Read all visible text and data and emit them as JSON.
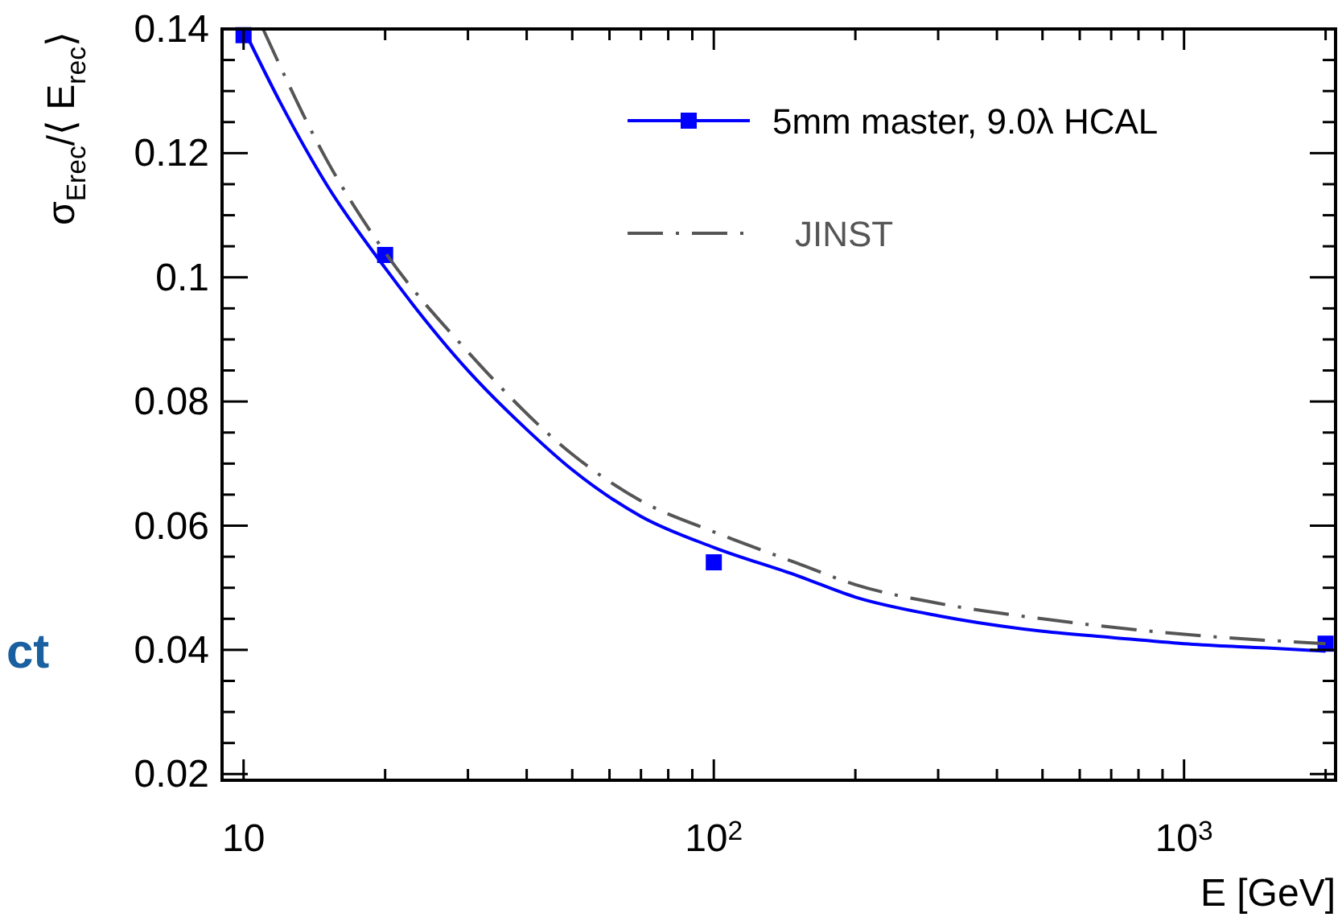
{
  "chart_data": {
    "type": "line",
    "ylabel": "σ$_{Erec}$/⟨ E$_{rec}$⟩",
    "xlabel": "E [GeV]",
    "log": "x",
    "xlim": [
      9,
      2100
    ],
    "ylim": [
      0.019,
      0.14
    ],
    "xticks": [
      {
        "value": 10,
        "label": "10"
      },
      {
        "value": 20,
        "label": null
      },
      {
        "value": 30,
        "label": null
      },
      {
        "value": 40,
        "label": null
      },
      {
        "value": 50,
        "label": null
      },
      {
        "value": 60,
        "label": null
      },
      {
        "value": 70,
        "label": null
      },
      {
        "value": 80,
        "label": null
      },
      {
        "value": 90,
        "label": null
      },
      {
        "value": 100,
        "label": "10$^{2}$"
      },
      {
        "value": 200,
        "label": null
      },
      {
        "value": 300,
        "label": null
      },
      {
        "value": 400,
        "label": null
      },
      {
        "value": 500,
        "label": null
      },
      {
        "value": 600,
        "label": null
      },
      {
        "value": 700,
        "label": null
      },
      {
        "value": 800,
        "label": null
      },
      {
        "value": 900,
        "label": null
      },
      {
        "value": 1000,
        "label": "10$^{3}$"
      },
      {
        "value": 2000,
        "label": null
      }
    ],
    "yticks": [
      {
        "value": 0.02,
        "label": "0.02"
      },
      {
        "value": 0.025,
        "label": null
      },
      {
        "value": 0.03,
        "label": null
      },
      {
        "value": 0.035,
        "label": null
      },
      {
        "value": 0.04,
        "label": "0.04"
      },
      {
        "value": 0.045,
        "label": null
      },
      {
        "value": 0.05,
        "label": null
      },
      {
        "value": 0.055,
        "label": null
      },
      {
        "value": 0.06,
        "label": "0.06"
      },
      {
        "value": 0.065,
        "label": null
      },
      {
        "value": 0.07,
        "label": null
      },
      {
        "value": 0.075,
        "label": null
      },
      {
        "value": 0.08,
        "label": "0.08"
      },
      {
        "value": 0.085,
        "label": null
      },
      {
        "value": 0.09,
        "label": null
      },
      {
        "value": 0.095,
        "label": null
      },
      {
        "value": 0.1,
        "label": "0.1"
      },
      {
        "value": 0.105,
        "label": null
      },
      {
        "value": 0.11,
        "label": null
      },
      {
        "value": 0.115,
        "label": null
      },
      {
        "value": 0.12,
        "label": "0.12"
      },
      {
        "value": 0.125,
        "label": null
      },
      {
        "value": 0.13,
        "label": null
      },
      {
        "value": 0.135,
        "label": null
      },
      {
        "value": 0.14,
        "label": "0.14"
      }
    ],
    "grid": false,
    "legend": "top right",
    "annotations": [
      "ct"
    ],
    "series": [
      {
        "type": "scatter",
        "name": "5mm master, 9.0λ HCAL",
        "color": "#0000ff",
        "marker": "square",
        "x": [
          10,
          20,
          100,
          2000
        ],
        "values": [
          0.139,
          0.1036,
          0.0541,
          0.041
        ]
      },
      {
        "color": "#0000ff",
        "line_style": "solid",
        "marker": "none",
        "x": [
          10,
          12,
          15,
          20,
          30,
          40,
          50,
          70,
          100,
          150,
          200,
          300,
          500,
          700,
          1000,
          1500,
          2000
        ],
        "values": [
          0.14,
          0.128,
          0.115,
          0.1015,
          0.085,
          0.0755,
          0.069,
          0.0615,
          0.0565,
          0.052,
          0.0485,
          0.0455,
          0.043,
          0.042,
          0.041,
          0.0403,
          0.0398
        ]
      },
      {
        "name": "JINST",
        "color": "#555555",
        "line_style": "dashdot",
        "marker": "none",
        "x": [
          11,
          15,
          20,
          30,
          50,
          70,
          100,
          150,
          200,
          300,
          500,
          1000,
          2000
        ],
        "values": [
          0.14,
          0.119,
          0.104,
          0.088,
          0.0715,
          0.064,
          0.059,
          0.054,
          0.0505,
          0.0475,
          0.045,
          0.0425,
          0.041
        ]
      }
    ]
  }
}
